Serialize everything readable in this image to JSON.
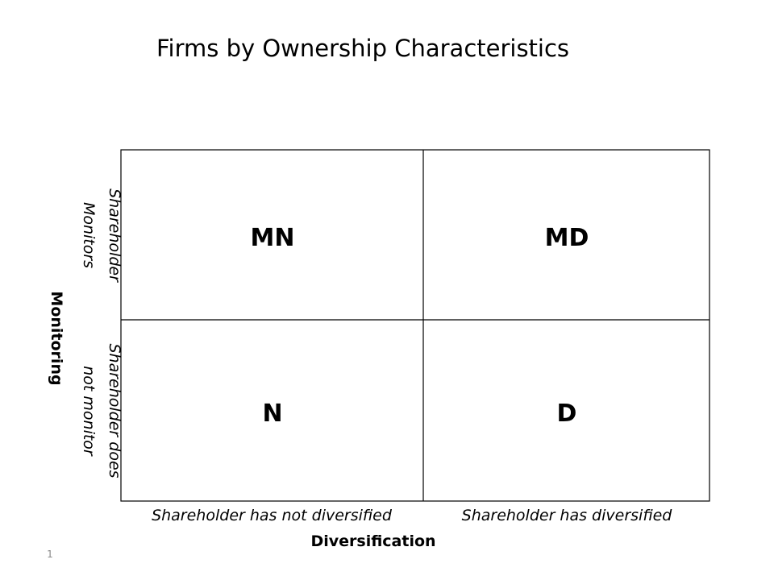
{
  "title": "Firms by Ownership Characteristics",
  "y_axis": {
    "label": "Monitoring",
    "rows": [
      [
        "Shareholder",
        "Monitors"
      ],
      [
        "Shareholder does",
        "not monitor"
      ]
    ]
  },
  "x_axis": {
    "label": "Diversification",
    "columns": [
      "Shareholder has not diversified",
      "Shareholder has diversified"
    ]
  },
  "cells": [
    [
      "MN",
      "MD"
    ],
    [
      "N",
      "D"
    ]
  ],
  "page_number": "1"
}
